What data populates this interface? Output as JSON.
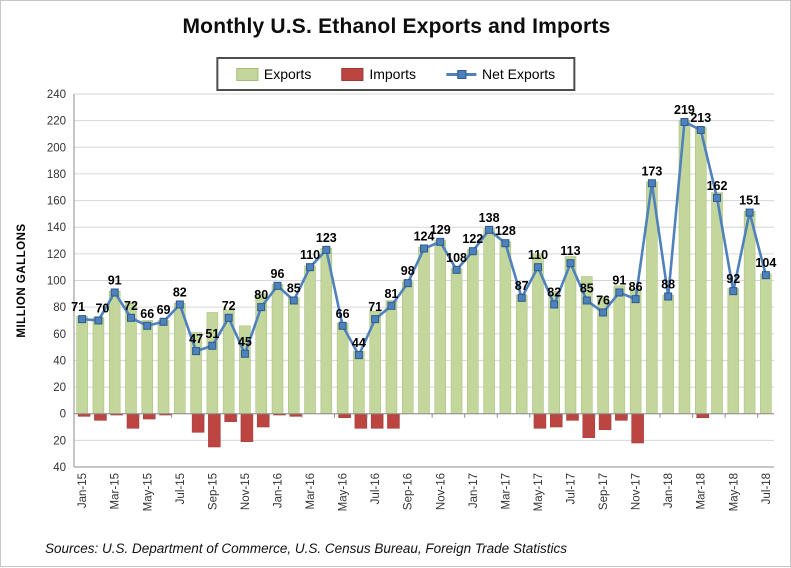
{
  "title": "Monthly U.S. Ethanol Exports and Imports",
  "legend": {
    "exports_label": "Exports",
    "imports_label": "Imports",
    "net_exports_label": "Net Exports"
  },
  "y_axis": {
    "title": "MILLION GALLONS",
    "min": -40,
    "max": 240,
    "step": 20
  },
  "source_note": "Sources: U.S. Department of Commerce, U.S. Census Bureau, Foreign Trade Statistics",
  "colors": {
    "exports_fill": "#c3d69b",
    "exports_border": "#a4bd78",
    "imports_fill": "#bc4542",
    "imports_border": "#9c3a38",
    "net_line": "#4f81bd",
    "net_marker_border": "#2c5a8c",
    "grid": "#d6d6d6",
    "axis": "#8c8c8c",
    "tick_text": "#333333",
    "data_label": "#000000"
  },
  "chart_data": {
    "type": "bar",
    "subtype": "combo-bar-line",
    "title": "Monthly U.S. Ethanol Exports and Imports",
    "xlabel": "",
    "ylabel": "MILLION GALLONS",
    "ylim": [
      -40,
      240
    ],
    "ytick_step": 20,
    "grid": "horizontal",
    "legend_position": "top",
    "categories": [
      "Jan-15",
      "Feb-15",
      "Mar-15",
      "Apr-15",
      "May-15",
      "Jun-15",
      "Jul-15",
      "Aug-15",
      "Sep-15",
      "Oct-15",
      "Nov-15",
      "Dec-15",
      "Jan-16",
      "Feb-16",
      "Mar-16",
      "Apr-16",
      "May-16",
      "Jun-16",
      "Jul-16",
      "Aug-16",
      "Sep-16",
      "Oct-16",
      "Nov-16",
      "Dec-16",
      "Jan-17",
      "Feb-17",
      "Mar-17",
      "Apr-17",
      "May-17",
      "Jun-17",
      "Jul-17",
      "Aug-17",
      "Sep-17",
      "Oct-17",
      "Nov-17",
      "Dec-17",
      "Jan-18",
      "Feb-18",
      "Mar-18",
      "Apr-18",
      "May-18",
      "Jun-18",
      "Jul-18"
    ],
    "x_tick_labels": [
      "Jan-15",
      "Mar-15",
      "May-15",
      "Jul-15",
      "Sep-15",
      "Nov-15",
      "Jan-16",
      "Mar-16",
      "May-16",
      "Jul-16",
      "Sep-16",
      "Nov-16",
      "Jan-17",
      "Mar-17",
      "May-17",
      "Jul-17",
      "Sep-17",
      "Nov-17",
      "Jan-18",
      "Mar-18",
      "May-18",
      "Jul-18"
    ],
    "series": [
      {
        "name": "Exports",
        "type": "bar",
        "values": [
          73,
          72,
          92,
          83,
          70,
          70,
          83,
          61,
          76,
          78,
          66,
          90,
          97,
          87,
          111,
          124,
          68,
          47,
          77,
          85,
          99,
          125,
          130,
          109,
          123,
          139,
          129,
          89,
          120,
          92,
          118,
          103,
          88,
          96,
          94,
          174,
          89,
          220,
          215,
          166,
          94,
          152,
          105
        ]
      },
      {
        "name": "Imports",
        "type": "bar",
        "values": [
          -2,
          -5,
          -1,
          -11,
          -4,
          -1,
          0,
          -14,
          -25,
          -6,
          -21,
          -10,
          -1,
          -2,
          0,
          0,
          -3,
          -11,
          -11,
          -11,
          0,
          0,
          0,
          0,
          0,
          0,
          0,
          0,
          -11,
          -10,
          -5,
          -18,
          -12,
          -5,
          -22,
          0,
          0,
          0,
          -3,
          0,
          0,
          0,
          0
        ]
      },
      {
        "name": "Net Exports",
        "type": "line",
        "labels_shown": true,
        "values": [
          71,
          70,
          91,
          72,
          66,
          69,
          82,
          47,
          51,
          72,
          45,
          80,
          96,
          85,
          110,
          123,
          66,
          44,
          71,
          81,
          98,
          124,
          129,
          108,
          122,
          138,
          128,
          87,
          110,
          82,
          113,
          85,
          76,
          91,
          86,
          173,
          88,
          219,
          213,
          162,
          92,
          151,
          104
        ]
      }
    ]
  }
}
